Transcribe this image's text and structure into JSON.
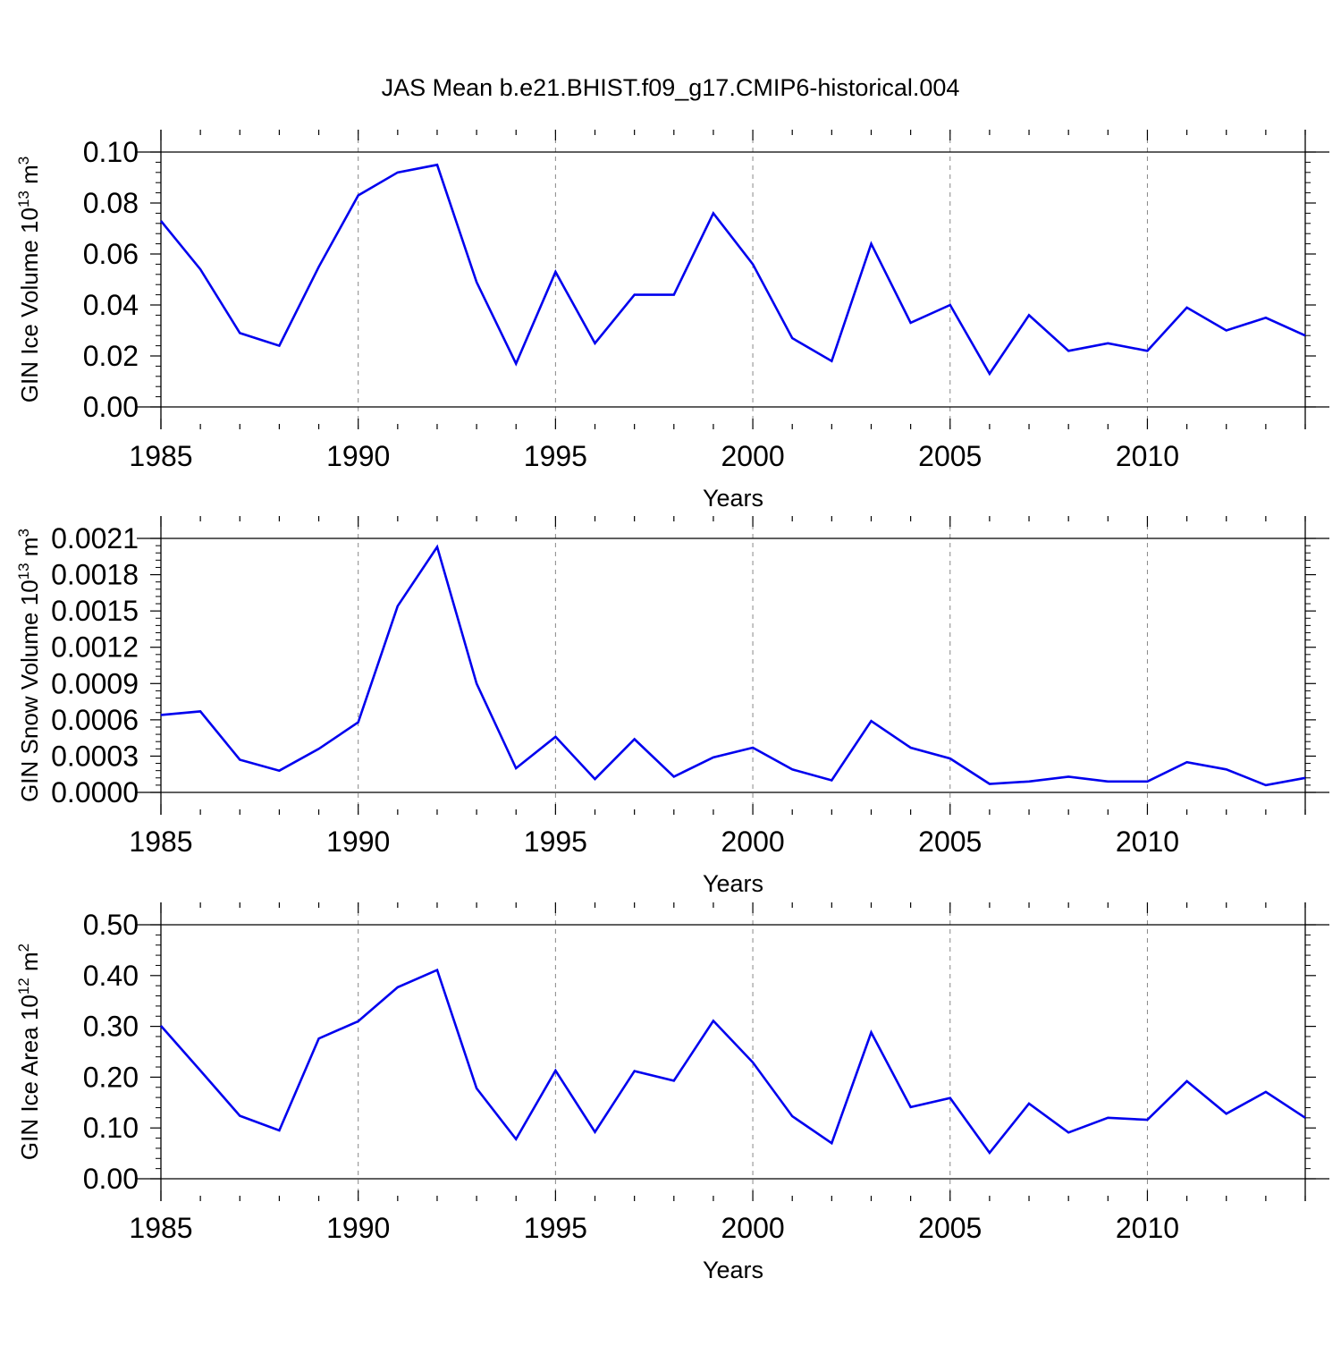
{
  "chart_data": {
    "type": "line",
    "title": "JAS Mean b.e21.BHIST.f09_g17.CMIP6-historical.004",
    "line_color": "#0000ee",
    "x": [
      1985,
      1986,
      1987,
      1988,
      1989,
      1990,
      1991,
      1992,
      1993,
      1994,
      1995,
      1996,
      1997,
      1998,
      1999,
      2000,
      2001,
      2002,
      2003,
      2004,
      2005,
      2006,
      2007,
      2008,
      2009,
      2010,
      2011,
      2012,
      2013,
      2014
    ],
    "xlim": [
      1985,
      2014
    ],
    "xticks": [
      "1985",
      "1990",
      "1995",
      "2000",
      "2005",
      "2010"
    ],
    "xlabel": "Years",
    "grid": "dashed vertical lines at major x ticks",
    "panels": [
      {
        "id": "ice-volume",
        "ylabel": "GIN Ice Volume 10",
        "ylabel_exp": "13",
        "ylabel_unit": "m",
        "ylabel_unit_exp": "3",
        "ylim": [
          0,
          0.1
        ],
        "yticks": [
          "0.00",
          "0.02",
          "0.04",
          "0.06",
          "0.08",
          "0.10"
        ],
        "values": [
          0.073,
          0.054,
          0.029,
          0.024,
          0.055,
          0.083,
          0.092,
          0.095,
          0.049,
          0.017,
          0.053,
          0.025,
          0.044,
          0.044,
          0.076,
          0.056,
          0.027,
          0.018,
          0.064,
          0.033,
          0.04,
          0.013,
          0.036,
          0.022,
          0.025,
          0.022,
          0.039,
          0.03,
          0.035,
          0.028
        ]
      },
      {
        "id": "snow-volume",
        "ylabel": "GIN Snow Volume 10",
        "ylabel_exp": "13",
        "ylabel_unit": "m",
        "ylabel_unit_exp": "3",
        "ylim": [
          0,
          0.0021
        ],
        "yticks": [
          "0.0000",
          "0.0003",
          "0.0006",
          "0.0009",
          "0.0012",
          "0.0015",
          "0.0018",
          "0.0021"
        ],
        "values": [
          0.00064,
          0.00067,
          0.00027,
          0.00018,
          0.00036,
          0.00058,
          0.00154,
          0.00203,
          0.0009,
          0.0002,
          0.00046,
          0.00011,
          0.00044,
          0.00013,
          0.00029,
          0.00037,
          0.00019,
          0.0001,
          0.00059,
          0.00037,
          0.00028,
          7e-05,
          9e-05,
          0.00013,
          9e-05,
          9e-05,
          0.00025,
          0.00019,
          6e-05,
          0.00012
        ]
      },
      {
        "id": "ice-area",
        "ylabel": "GIN Ice Area 10",
        "ylabel_exp": "12",
        "ylabel_unit": "m",
        "ylabel_unit_exp": "2",
        "ylim": [
          0,
          0.5
        ],
        "yticks": [
          "0.00",
          "0.10",
          "0.20",
          "0.30",
          "0.40",
          "0.50"
        ],
        "values": [
          0.301,
          0.213,
          0.124,
          0.095,
          0.276,
          0.31,
          0.377,
          0.411,
          0.178,
          0.078,
          0.213,
          0.092,
          0.212,
          0.193,
          0.311,
          0.229,
          0.123,
          0.07,
          0.288,
          0.141,
          0.159,
          0.051,
          0.148,
          0.091,
          0.12,
          0.116,
          0.192,
          0.128,
          0.171,
          0.12
        ]
      }
    ]
  }
}
